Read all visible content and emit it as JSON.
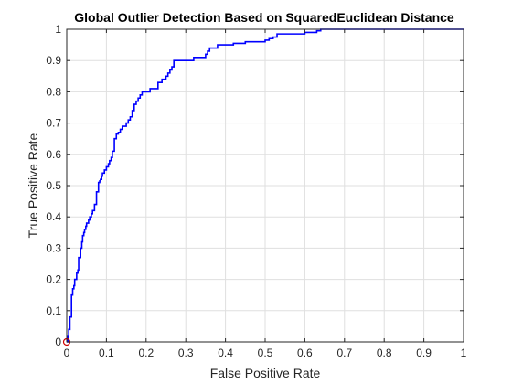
{
  "chart_data": {
    "type": "line",
    "title": "Global Outlier Detection Based on SquaredEuclidean Distance",
    "xlabel": "False Positive Rate",
    "ylabel": "True Positive Rate",
    "xlim": [
      0,
      1
    ],
    "ylim": [
      0,
      1
    ],
    "xticks": [
      "0",
      "0.1",
      "0.2",
      "0.3",
      "0.4",
      "0.5",
      "0.6",
      "0.7",
      "0.8",
      "0.9",
      "1"
    ],
    "yticks": [
      "0",
      "0.1",
      "0.2",
      "0.3",
      "0.4",
      "0.5",
      "0.6",
      "0.7",
      "0.8",
      "0.9",
      "1"
    ],
    "grid": true,
    "line_color": "#0000ff",
    "marker_color": "#cc0000",
    "marker": {
      "x": 0,
      "y": 0
    },
    "x": [
      0.0,
      0.003,
      0.005,
      0.008,
      0.012,
      0.015,
      0.018,
      0.02,
      0.025,
      0.028,
      0.03,
      0.035,
      0.038,
      0.04,
      0.043,
      0.045,
      0.048,
      0.05,
      0.055,
      0.058,
      0.062,
      0.065,
      0.07,
      0.075,
      0.08,
      0.083,
      0.085,
      0.088,
      0.09,
      0.095,
      0.1,
      0.105,
      0.108,
      0.112,
      0.115,
      0.12,
      0.125,
      0.13,
      0.135,
      0.14,
      0.15,
      0.155,
      0.16,
      0.165,
      0.17,
      0.175,
      0.18,
      0.185,
      0.19,
      0.2,
      0.21,
      0.22,
      0.23,
      0.24,
      0.25,
      0.255,
      0.26,
      0.265,
      0.27,
      0.3,
      0.32,
      0.35,
      0.355,
      0.36,
      0.37,
      0.38,
      0.4,
      0.42,
      0.45,
      0.5,
      0.51,
      0.52,
      0.53,
      0.55,
      0.6,
      0.62,
      0.63,
      0.64,
      0.7,
      0.8,
      0.9,
      1.0
    ],
    "y": [
      0.0,
      0.02,
      0.04,
      0.08,
      0.15,
      0.17,
      0.18,
      0.2,
      0.22,
      0.23,
      0.27,
      0.3,
      0.32,
      0.34,
      0.35,
      0.36,
      0.37,
      0.38,
      0.39,
      0.4,
      0.41,
      0.42,
      0.44,
      0.48,
      0.51,
      0.515,
      0.52,
      0.53,
      0.54,
      0.55,
      0.56,
      0.57,
      0.58,
      0.59,
      0.61,
      0.65,
      0.665,
      0.67,
      0.68,
      0.69,
      0.7,
      0.71,
      0.72,
      0.74,
      0.76,
      0.77,
      0.78,
      0.79,
      0.8,
      0.8,
      0.81,
      0.81,
      0.83,
      0.84,
      0.85,
      0.86,
      0.87,
      0.88,
      0.9,
      0.9,
      0.91,
      0.92,
      0.93,
      0.94,
      0.94,
      0.95,
      0.95,
      0.955,
      0.96,
      0.965,
      0.97,
      0.975,
      0.985,
      0.985,
      0.99,
      0.99,
      0.995,
      1.0,
      1.0,
      1.0,
      1.0,
      1.0
    ]
  }
}
